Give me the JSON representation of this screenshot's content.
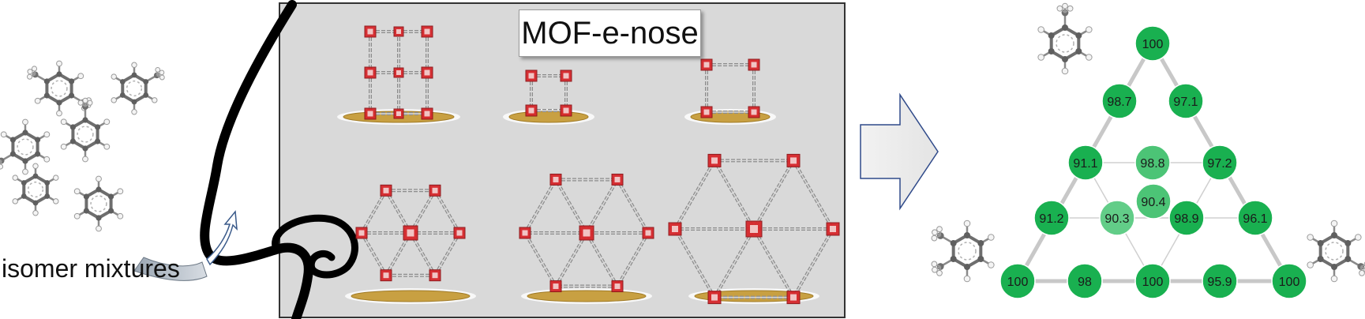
{
  "title": "MOF-e-nose",
  "input_label": "isomer mixtures",
  "colors": {
    "panel_bg": "#d9d9d9",
    "node_green": "#19b050",
    "node_green_light": "#4cc476",
    "node_green_lighter": "#62cd88",
    "film_gold": "#c8a042",
    "mof_red": "#d6262b",
    "mof_gray": "#8c8c8c"
  },
  "triangle": {
    "nodes": [
      {
        "id": "apex",
        "value": "100",
        "shade": "dark"
      },
      {
        "id": "l1",
        "value": "98.7",
        "shade": "dark"
      },
      {
        "id": "r1",
        "value": "97.1",
        "shade": "dark"
      },
      {
        "id": "l2",
        "value": "91.1",
        "shade": "dark"
      },
      {
        "id": "c2",
        "value": "98.8",
        "shade": "light"
      },
      {
        "id": "r2",
        "value": "97.2",
        "shade": "dark"
      },
      {
        "id": "c3",
        "value": "90.4",
        "shade": "light"
      },
      {
        "id": "l3",
        "value": "91.2",
        "shade": "dark"
      },
      {
        "id": "m3",
        "value": "90.3",
        "shade": "lighter"
      },
      {
        "id": "m4",
        "value": "98.9",
        "shade": "dark"
      },
      {
        "id": "r3",
        "value": "96.1",
        "shade": "dark"
      },
      {
        "id": "b1",
        "value": "100",
        "shade": "dark"
      },
      {
        "id": "b2",
        "value": "98",
        "shade": "dark"
      },
      {
        "id": "b3",
        "value": "100",
        "shade": "dark"
      },
      {
        "id": "b4",
        "value": "95.9",
        "shade": "dark"
      },
      {
        "id": "b5",
        "value": "100",
        "shade": "dark"
      }
    ]
  },
  "mof_structures": [
    {
      "name": "mof-structure-1",
      "type": "pillared-grid"
    },
    {
      "name": "mof-structure-2",
      "type": "small-cube"
    },
    {
      "name": "mof-structure-3",
      "type": "square-cage"
    },
    {
      "name": "mof-structure-4",
      "type": "dense-hex"
    },
    {
      "name": "mof-structure-5",
      "type": "kagome-net"
    },
    {
      "name": "mof-structure-6",
      "type": "large-hex-net"
    }
  ],
  "isomer_molecules": [
    {
      "name": "isomer-molecule-1"
    },
    {
      "name": "isomer-molecule-2"
    },
    {
      "name": "isomer-molecule-3"
    },
    {
      "name": "isomer-molecule-4"
    },
    {
      "name": "isomer-molecule-5"
    },
    {
      "name": "isomer-molecule-6"
    }
  ]
}
